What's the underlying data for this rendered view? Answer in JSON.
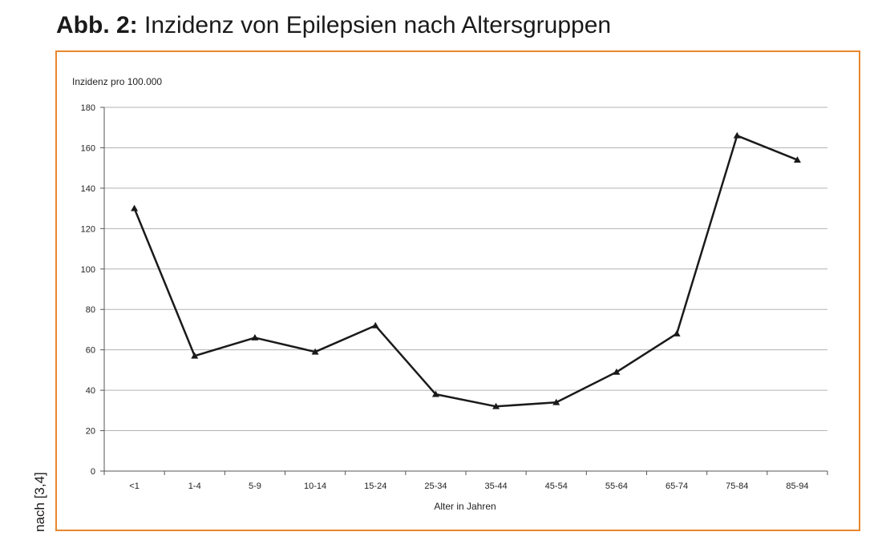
{
  "figure": {
    "label": "Abb. 2:",
    "title": "Inzidenz von Epilepsien nach Altersgruppen",
    "source": "nach [3,4]"
  },
  "colors": {
    "frame": "#e8872e",
    "line": "#1a1a1a",
    "grid": "#b3b3b3"
  },
  "chart_data": {
    "type": "line",
    "title": "",
    "xlabel": "Alter in Jahren",
    "ylabel": "Inzidenz pro 100.000",
    "ylim": [
      0,
      180
    ],
    "yticks": [
      0,
      20,
      40,
      60,
      80,
      100,
      120,
      140,
      160,
      180
    ],
    "grid": true,
    "marker": "triangle",
    "categories": [
      "<1",
      "1-4",
      "5-9",
      "10-14",
      "15-24",
      "25-34",
      "35-44",
      "45-54",
      "55-64",
      "65-74",
      "75-84",
      "85-94"
    ],
    "series": [
      {
        "values": [
          130,
          57,
          66,
          59,
          72,
          38,
          32,
          34,
          49,
          68,
          166,
          154
        ]
      }
    ]
  }
}
